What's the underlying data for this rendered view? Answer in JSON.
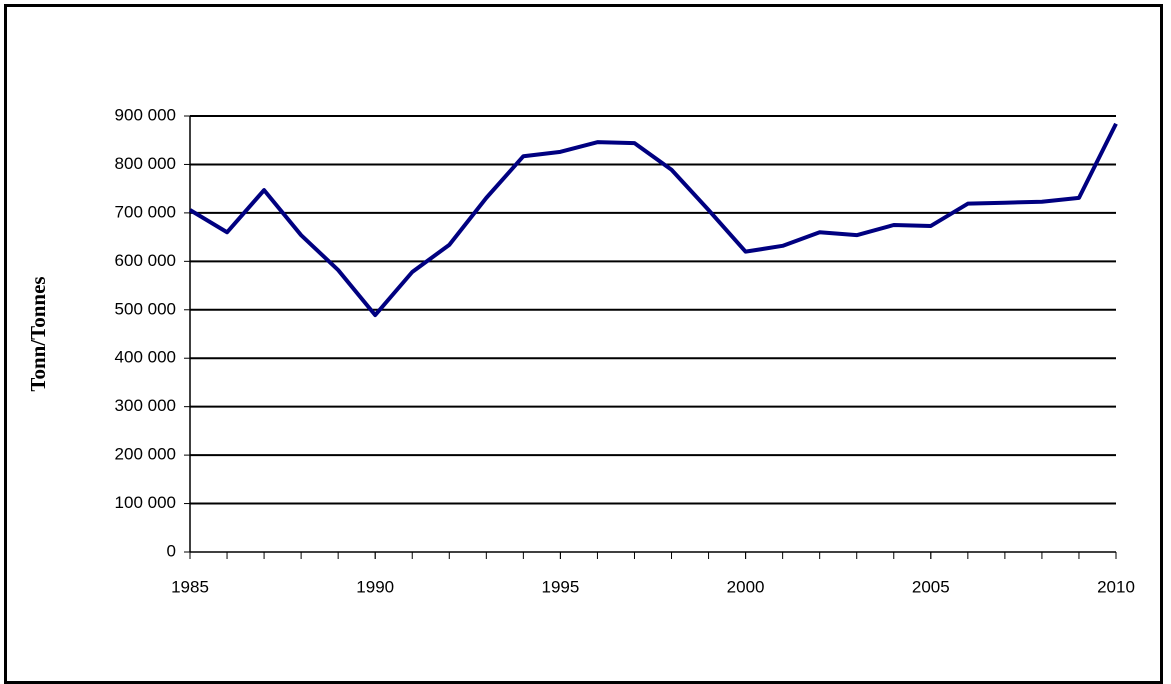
{
  "chart_data": {
    "type": "line",
    "y_label": "Tonn/Tonnes",
    "x": [
      1985,
      1986,
      1987,
      1988,
      1989,
      1990,
      1991,
      1992,
      1993,
      1994,
      1995,
      1996,
      1997,
      1998,
      1999,
      2000,
      2001,
      2002,
      2003,
      2004,
      2005,
      2006,
      2007,
      2008,
      2009,
      2010
    ],
    "series": [
      {
        "color": "#000080",
        "values": [
          706000,
          660000,
          747000,
          654000,
          582000,
          489000,
          578000,
          634000,
          731000,
          817000,
          826000,
          846000,
          844000,
          789000,
          706000,
          620000,
          632000,
          660000,
          654000,
          675000,
          673000,
          719000,
          721000,
          723000,
          731000,
          884000
        ]
      }
    ],
    "xlim": [
      1985,
      2010
    ],
    "xticks": [
      1985,
      1990,
      1995,
      2000,
      2005,
      2010
    ],
    "ylim": [
      0,
      900000
    ],
    "yticks": [
      0,
      {
        "value": 100000,
        "label": "100 000"
      },
      {
        "value": 200000,
        "label": "200 000"
      },
      {
        "value": 300000,
        "label": "300 000"
      },
      {
        "value": 400000,
        "label": "400 000"
      },
      {
        "value": 500000,
        "label": "500 000"
      },
      {
        "value": 600000,
        "label": "600 000"
      },
      {
        "value": 700000,
        "label": "700 000"
      },
      {
        "value": 800000,
        "label": "800 000"
      },
      {
        "value": 900000,
        "label": "900 000"
      }
    ],
    "grid": true
  }
}
